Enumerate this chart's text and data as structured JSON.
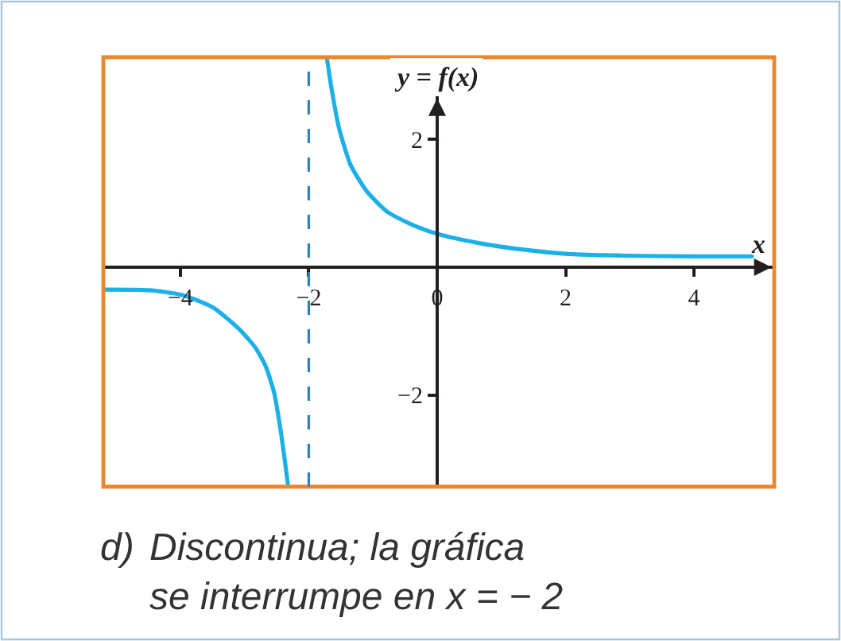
{
  "chart_data": {
    "type": "line",
    "xlabel": "x",
    "ylabel": "y = f(x)",
    "xlim": [
      -5.2,
      5.25
    ],
    "ylim": [
      -3.43,
      3.28
    ],
    "xticks": [
      -4,
      -2,
      0,
      2,
      4
    ],
    "yticks": [
      -2,
      2
    ],
    "series": [
      {
        "color": "#1cb0e8",
        "x": [
          -5.19,
          -4.49,
          -3.99,
          -3.49,
          -3.08,
          -2.83,
          -2.67,
          -2.54,
          -2.44,
          -2.36,
          -2.32
        ],
        "values": [
          -0.35,
          -0.36,
          -0.43,
          -0.63,
          -0.97,
          -1.26,
          -1.55,
          -1.96,
          -2.54,
          -3.12,
          -3.43
        ]
      },
      {
        "color": "#1cb0e8",
        "x": [
          -1.72,
          -1.64,
          -1.53,
          -1.35,
          -1.1,
          -0.77,
          -0.36,
          0,
          0.63,
          1.29,
          2,
          2.94,
          4,
          4.9
        ],
        "values": [
          3.28,
          2.76,
          2.18,
          1.6,
          1.19,
          0.86,
          0.65,
          0.52,
          0.38,
          0.28,
          0.21,
          0.18,
          0.17,
          0.17
        ]
      }
    ],
    "ref_lines": [
      {
        "axis": "x",
        "value": -2,
        "color": "#2f7fc1",
        "line_style": "dashed"
      }
    ],
    "annotations": [
      "d)",
      "Discontinua; la gráfica\nse interrumpe en x = − 2"
    ],
    "grid": false,
    "marker": "none",
    "line_style": "solid"
  }
}
